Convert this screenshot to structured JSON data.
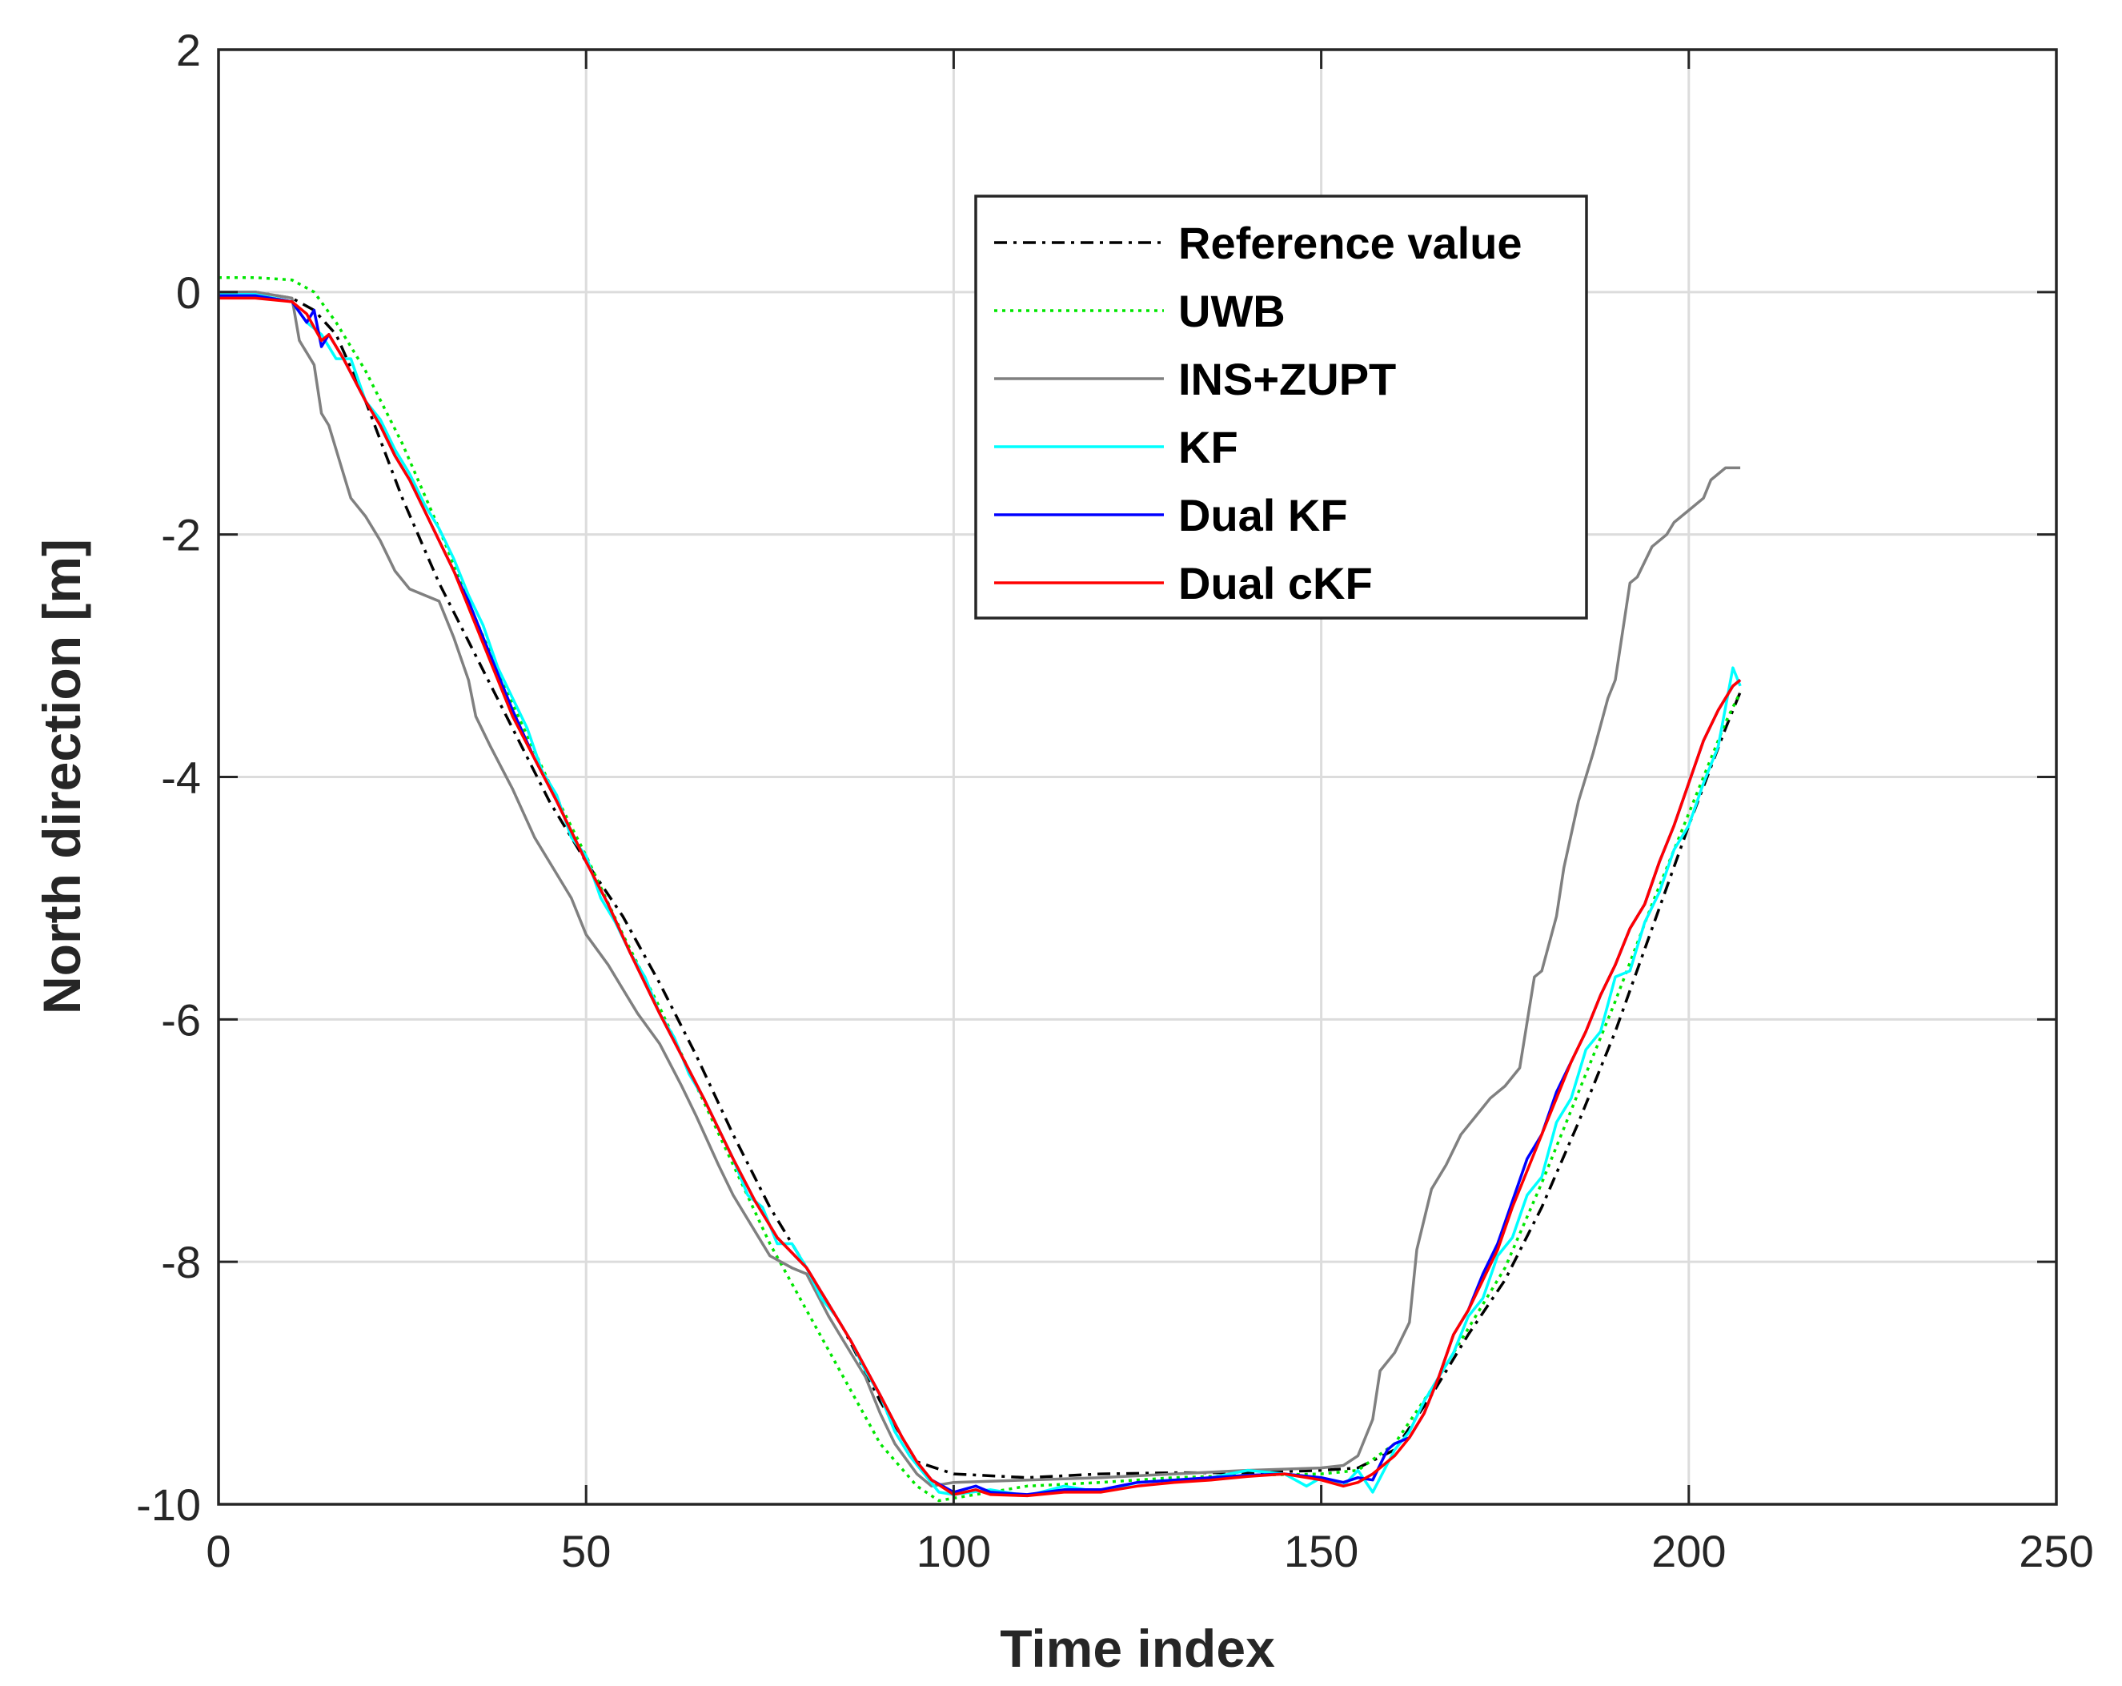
{
  "chart_data": {
    "type": "line",
    "title": "",
    "xlabel": "Time index",
    "ylabel": "North direction [m]",
    "xlim": [
      0,
      250
    ],
    "ylim": [
      -10,
      2
    ],
    "xticks": [
      0,
      50,
      100,
      150,
      200,
      250
    ],
    "yticks": [
      -10,
      -8,
      -6,
      -4,
      -2,
      0,
      2
    ],
    "xtick_labels": [
      "0",
      "50",
      "100",
      "150",
      "200",
      "250"
    ],
    "ytick_labels": [
      "-10",
      "-8",
      "-6",
      "-4",
      "-2",
      "0",
      "2"
    ],
    "grid": true,
    "legend_position": "top-right",
    "series": [
      {
        "name": "Reference value",
        "color": "#000000",
        "style": "dashdot",
        "x": [
          0,
          5,
          10,
          13,
          16,
          20,
          25,
          30,
          35,
          40,
          45,
          50,
          55,
          60,
          65,
          70,
          75,
          80,
          85,
          90,
          95,
          100,
          110,
          120,
          130,
          140,
          150,
          155,
          160,
          165,
          170,
          175,
          180,
          185,
          190,
          195,
          200,
          205,
          207
        ],
        "y": [
          0.0,
          0.0,
          -0.05,
          -0.15,
          -0.35,
          -0.9,
          -1.7,
          -2.4,
          -3.0,
          -3.6,
          -4.2,
          -4.7,
          -5.15,
          -5.7,
          -6.3,
          -6.95,
          -7.55,
          -8.05,
          -8.55,
          -9.15,
          -9.65,
          -9.75,
          -9.78,
          -9.75,
          -9.74,
          -9.74,
          -9.72,
          -9.7,
          -9.55,
          -9.1,
          -8.6,
          -8.15,
          -7.55,
          -6.85,
          -6.1,
          -5.25,
          -4.4,
          -3.6,
          -3.3
        ]
      },
      {
        "name": "UWB",
        "color": "#00e600",
        "style": "dotted",
        "x": [
          0,
          5,
          10,
          13,
          16,
          20,
          25,
          30,
          35,
          40,
          45,
          50,
          55,
          60,
          65,
          70,
          75,
          80,
          85,
          90,
          95,
          98,
          100,
          105,
          110,
          120,
          130,
          140,
          150,
          155,
          160,
          165,
          170,
          175,
          180,
          185,
          190,
          195,
          200,
          205,
          207
        ],
        "y": [
          0.12,
          0.12,
          0.1,
          0.0,
          -0.25,
          -0.65,
          -1.25,
          -1.95,
          -2.7,
          -3.4,
          -4.05,
          -4.65,
          -5.3,
          -5.9,
          -6.55,
          -7.2,
          -7.85,
          -8.4,
          -8.95,
          -9.5,
          -9.85,
          -9.97,
          -9.95,
          -9.9,
          -9.85,
          -9.82,
          -9.78,
          -9.76,
          -9.75,
          -9.72,
          -9.5,
          -9.05,
          -8.55,
          -8.05,
          -7.35,
          -6.6,
          -5.85,
          -5.05,
          -4.3,
          -3.55,
          -3.3
        ]
      },
      {
        "name": "INS+ZUPT",
        "color": "#808080",
        "style": "solid",
        "x": [
          0,
          5,
          10,
          11,
          13,
          14,
          15,
          17,
          18,
          20,
          22,
          24,
          26,
          28,
          30,
          32,
          34,
          35,
          37,
          40,
          43,
          45,
          48,
          50,
          53,
          55,
          57,
          60,
          63,
          65,
          68,
          70,
          73,
          75,
          78,
          80,
          83,
          85,
          88,
          90,
          92,
          95,
          97,
          100,
          110,
          120,
          130,
          140,
          150,
          153,
          155,
          157,
          158,
          160,
          162,
          163,
          165,
          167,
          169,
          171,
          173,
          175,
          177,
          179,
          180,
          182,
          183,
          185,
          187,
          189,
          190,
          192,
          193,
          195,
          197,
          198,
          200,
          202,
          203,
          205,
          207
        ],
        "y": [
          0.0,
          0.0,
          -0.05,
          -0.4,
          -0.6,
          -1.0,
          -1.1,
          -1.5,
          -1.7,
          -1.85,
          -2.05,
          -2.3,
          -2.45,
          -2.5,
          -2.55,
          -2.85,
          -3.2,
          -3.5,
          -3.75,
          -4.1,
          -4.5,
          -4.7,
          -5.0,
          -5.3,
          -5.55,
          -5.75,
          -5.95,
          -6.2,
          -6.55,
          -6.8,
          -7.2,
          -7.45,
          -7.75,
          -7.95,
          -8.05,
          -8.1,
          -8.45,
          -8.65,
          -8.95,
          -9.25,
          -9.5,
          -9.75,
          -9.85,
          -9.82,
          -9.8,
          -9.78,
          -9.75,
          -9.72,
          -9.7,
          -9.68,
          -9.6,
          -9.3,
          -8.9,
          -8.75,
          -8.5,
          -7.9,
          -7.4,
          -7.2,
          -6.95,
          -6.8,
          -6.65,
          -6.55,
          -6.4,
          -5.65,
          -5.6,
          -5.15,
          -4.75,
          -4.2,
          -3.8,
          -3.35,
          -3.2,
          -2.4,
          -2.35,
          -2.1,
          -2.0,
          -1.9,
          -1.8,
          -1.7,
          -1.55,
          -1.45,
          -1.45
        ]
      },
      {
        "name": "KF",
        "color": "#00ffff",
        "style": "solid",
        "x": [
          0,
          5,
          10,
          12,
          14,
          16,
          18,
          20,
          22,
          24,
          26,
          28,
          30,
          32,
          34,
          36,
          38,
          40,
          42,
          44,
          46,
          48,
          50,
          52,
          54,
          56,
          58,
          60,
          62,
          64,
          66,
          68,
          70,
          72,
          74,
          76,
          78,
          80,
          82,
          84,
          86,
          88,
          90,
          92,
          94,
          96,
          98,
          100,
          105,
          110,
          115,
          120,
          125,
          130,
          135,
          140,
          145,
          148,
          150,
          153,
          155,
          157,
          160,
          162,
          164,
          166,
          168,
          170,
          172,
          174,
          176,
          178,
          180,
          182,
          184,
          186,
          188,
          190,
          192,
          194,
          196,
          198,
          200,
          202,
          204,
          206,
          207
        ],
        "y": [
          -0.02,
          -0.02,
          -0.08,
          -0.25,
          -0.35,
          -0.55,
          -0.55,
          -0.9,
          -1.05,
          -1.3,
          -1.5,
          -1.75,
          -1.95,
          -2.2,
          -2.5,
          -2.75,
          -3.1,
          -3.35,
          -3.6,
          -3.95,
          -4.15,
          -4.5,
          -4.65,
          -5.0,
          -5.2,
          -5.45,
          -5.65,
          -5.95,
          -6.15,
          -6.45,
          -6.65,
          -6.9,
          -7.15,
          -7.45,
          -7.55,
          -7.85,
          -7.85,
          -8.05,
          -8.3,
          -8.45,
          -8.65,
          -8.9,
          -9.1,
          -9.4,
          -9.6,
          -9.75,
          -9.9,
          -9.92,
          -9.88,
          -9.93,
          -9.85,
          -9.9,
          -9.82,
          -9.8,
          -9.78,
          -9.72,
          -9.75,
          -9.85,
          -9.78,
          -9.85,
          -9.72,
          -9.9,
          -9.55,
          -9.4,
          -9.15,
          -8.95,
          -8.75,
          -8.45,
          -8.3,
          -7.95,
          -7.8,
          -7.45,
          -7.3,
          -6.85,
          -6.65,
          -6.25,
          -6.1,
          -5.65,
          -5.6,
          -5.2,
          -4.95,
          -4.6,
          -4.4,
          -4.05,
          -3.75,
          -3.1,
          -3.25
        ]
      },
      {
        "name": "Dual KF",
        "color": "#0000ff",
        "style": "solid",
        "x": [
          0,
          5,
          10,
          12,
          13,
          14,
          15,
          17,
          20,
          22,
          24,
          26,
          28,
          30,
          32,
          34,
          36,
          38,
          40,
          43,
          46,
          50,
          53,
          56,
          60,
          63,
          66,
          70,
          73,
          76,
          80,
          83,
          86,
          90,
          93,
          95,
          97,
          100,
          103,
          105,
          110,
          115,
          120,
          125,
          130,
          135,
          140,
          145,
          150,
          153,
          155,
          157,
          159,
          160,
          162,
          164,
          166,
          168,
          170,
          172,
          174,
          176,
          178,
          180,
          182,
          184,
          186,
          188,
          190,
          192,
          194,
          196,
          198,
          200,
          202,
          204,
          206,
          207
        ],
        "y": [
          -0.03,
          -0.03,
          -0.08,
          -0.25,
          -0.15,
          -0.45,
          -0.35,
          -0.55,
          -0.9,
          -1.1,
          -1.35,
          -1.55,
          -1.8,
          -2.05,
          -2.3,
          -2.55,
          -2.85,
          -3.15,
          -3.45,
          -3.85,
          -4.2,
          -4.7,
          -5.05,
          -5.45,
          -5.95,
          -6.3,
          -6.65,
          -7.15,
          -7.5,
          -7.8,
          -8.05,
          -8.35,
          -8.65,
          -9.1,
          -9.45,
          -9.65,
          -9.8,
          -9.9,
          -9.85,
          -9.9,
          -9.92,
          -9.88,
          -9.88,
          -9.82,
          -9.8,
          -9.78,
          -9.76,
          -9.75,
          -9.78,
          -9.82,
          -9.78,
          -9.8,
          -9.55,
          -9.5,
          -9.45,
          -9.25,
          -8.95,
          -8.6,
          -8.4,
          -8.1,
          -7.85,
          -7.5,
          -7.15,
          -6.95,
          -6.6,
          -6.35,
          -6.1,
          -5.8,
          -5.55,
          -5.25,
          -5.05,
          -4.7,
          -4.4,
          -4.05,
          -3.7,
          -3.45,
          -3.25,
          -3.2
        ]
      },
      {
        "name": "Dual cKF",
        "color": "#ff0000",
        "style": "solid",
        "x": [
          0,
          5,
          10,
          12,
          14,
          15,
          17,
          20,
          22,
          24,
          26,
          28,
          30,
          32,
          34,
          36,
          38,
          40,
          43,
          46,
          50,
          53,
          56,
          60,
          63,
          66,
          70,
          73,
          76,
          80,
          83,
          86,
          90,
          93,
          95,
          97,
          100,
          103,
          105,
          110,
          115,
          120,
          125,
          130,
          135,
          140,
          145,
          150,
          153,
          155,
          157,
          160,
          162,
          164,
          166,
          168,
          170,
          172,
          174,
          176,
          178,
          180,
          182,
          184,
          186,
          188,
          190,
          192,
          194,
          196,
          198,
          200,
          202,
          204,
          206,
          207
        ],
        "y": [
          -0.05,
          -0.05,
          -0.08,
          -0.18,
          -0.4,
          -0.35,
          -0.55,
          -0.9,
          -1.1,
          -1.35,
          -1.55,
          -1.8,
          -2.05,
          -2.3,
          -2.6,
          -2.9,
          -3.2,
          -3.5,
          -3.85,
          -4.2,
          -4.7,
          -5.05,
          -5.45,
          -5.95,
          -6.3,
          -6.65,
          -7.15,
          -7.5,
          -7.8,
          -8.05,
          -8.35,
          -8.65,
          -9.1,
          -9.45,
          -9.65,
          -9.8,
          -9.92,
          -9.88,
          -9.92,
          -9.93,
          -9.9,
          -9.9,
          -9.85,
          -9.82,
          -9.8,
          -9.77,
          -9.75,
          -9.8,
          -9.85,
          -9.82,
          -9.75,
          -9.6,
          -9.45,
          -9.25,
          -8.95,
          -8.6,
          -8.4,
          -8.15,
          -7.9,
          -7.55,
          -7.25,
          -6.95,
          -6.65,
          -6.35,
          -6.1,
          -5.8,
          -5.55,
          -5.25,
          -5.05,
          -4.7,
          -4.4,
          -4.05,
          -3.7,
          -3.45,
          -3.25,
          -3.2
        ]
      }
    ]
  }
}
